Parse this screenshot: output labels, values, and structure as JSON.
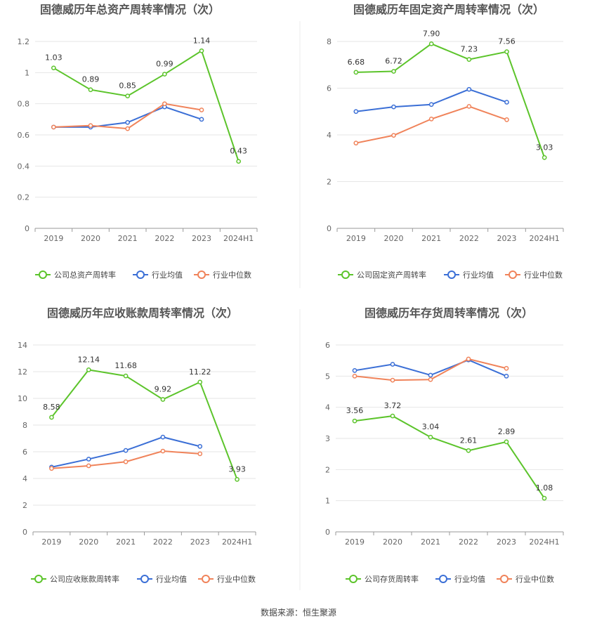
{
  "colors": {
    "company": "#5cc42b",
    "avg": "#3b6fd6",
    "median": "#f0835a"
  },
  "source": "数据来源：恒生聚源",
  "chart_data": [
    {
      "type": "line",
      "title": "固德威历年总资产周转率情况（次）",
      "categories": [
        "2019",
        "2020",
        "2021",
        "2022",
        "2023",
        "2024H1"
      ],
      "ylim": [
        0,
        1.2
      ],
      "yticks": [
        "0",
        "0.2",
        "0.4",
        "0.6",
        "0.8",
        "1",
        "1.2"
      ],
      "series": [
        {
          "name": "公司总资产周转率",
          "key": "company",
          "values": [
            1.03,
            0.89,
            0.85,
            0.99,
            1.14,
            0.43
          ],
          "labels": [
            "1.03",
            "0.89",
            "0.85",
            "0.99",
            "1.14",
            "0.43"
          ]
        },
        {
          "name": "行业均值",
          "key": "avg",
          "values": [
            0.65,
            0.65,
            0.68,
            0.78,
            0.7,
            null
          ]
        },
        {
          "name": "行业中位数",
          "key": "median",
          "values": [
            0.65,
            0.66,
            0.64,
            0.8,
            0.76,
            null
          ]
        }
      ]
    },
    {
      "type": "line",
      "title": "固德威历年固定资产周转率情况（次）",
      "categories": [
        "2019",
        "2020",
        "2021",
        "2022",
        "2023",
        "2024H1"
      ],
      "ylim": [
        0,
        8
      ],
      "yticks": [
        "0",
        "2",
        "4",
        "6",
        "8"
      ],
      "series": [
        {
          "name": "公司固定资产周转率",
          "key": "company",
          "values": [
            6.68,
            6.72,
            7.9,
            7.23,
            7.56,
            3.03
          ],
          "labels": [
            "6.68",
            "6.72",
            "7.90",
            "7.23",
            "7.56",
            "3.03"
          ]
        },
        {
          "name": "行业均值",
          "key": "avg",
          "values": [
            5.0,
            5.2,
            5.3,
            5.95,
            5.4,
            null
          ]
        },
        {
          "name": "行业中位数",
          "key": "median",
          "values": [
            3.65,
            3.98,
            4.68,
            5.22,
            4.65,
            null
          ]
        }
      ]
    },
    {
      "type": "line",
      "title": "固德威历年应收账款周转率情况（次）",
      "categories": [
        "2019",
        "2020",
        "2021",
        "2022",
        "2023",
        "2024H1"
      ],
      "ylim": [
        0,
        14
      ],
      "yticks": [
        "0",
        "2",
        "4",
        "6",
        "8",
        "10",
        "12",
        "14"
      ],
      "series": [
        {
          "name": "公司应收账款周转率",
          "key": "company",
          "values": [
            8.58,
            12.14,
            11.68,
            9.92,
            11.22,
            3.93
          ],
          "labels": [
            "8.58",
            "12.14",
            "11.68",
            "9.92",
            "11.22",
            "3.93"
          ]
        },
        {
          "name": "行业均值",
          "key": "avg",
          "values": [
            4.85,
            5.45,
            6.1,
            7.1,
            6.4,
            null
          ]
        },
        {
          "name": "行业中位数",
          "key": "median",
          "values": [
            4.75,
            4.95,
            5.25,
            6.05,
            5.85,
            null
          ]
        }
      ]
    },
    {
      "type": "line",
      "title": "固德威历年存货周转率情况（次）",
      "categories": [
        "2019",
        "2020",
        "2021",
        "2022",
        "2023",
        "2024H1"
      ],
      "ylim": [
        0,
        6
      ],
      "yticks": [
        "0",
        "1",
        "2",
        "3",
        "4",
        "5",
        "6"
      ],
      "series": [
        {
          "name": "公司存货周转率",
          "key": "company",
          "values": [
            3.56,
            3.72,
            3.04,
            2.61,
            2.89,
            1.08
          ],
          "labels": [
            "3.56",
            "3.72",
            "3.04",
            "2.61",
            "2.89",
            "1.08"
          ]
        },
        {
          "name": "行业均值",
          "key": "avg",
          "values": [
            5.18,
            5.38,
            5.03,
            5.52,
            5.0,
            null
          ]
        },
        {
          "name": "行业中位数",
          "key": "median",
          "values": [
            5.0,
            4.87,
            4.89,
            5.55,
            5.25,
            null
          ]
        }
      ]
    }
  ]
}
